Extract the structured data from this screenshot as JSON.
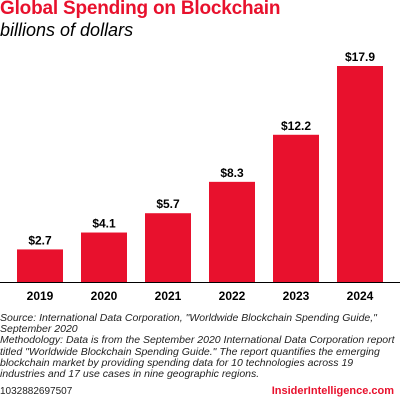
{
  "header": {
    "title": "Global Spending on Blockchain",
    "subtitle": "billions of dollars"
  },
  "chart_data": {
    "type": "bar",
    "title": "Global Spending on Blockchain",
    "subtitle": "billions of dollars",
    "categories": [
      "2019",
      "2020",
      "2021",
      "2022",
      "2023",
      "2024"
    ],
    "values": [
      2.7,
      4.1,
      5.7,
      8.3,
      12.2,
      17.9
    ],
    "value_labels": [
      "$2.7",
      "$4.1",
      "$5.7",
      "$8.3",
      "$12.2",
      "$17.9"
    ],
    "xlabel": "",
    "ylabel": "",
    "ylim": [
      0,
      17.9
    ],
    "grid": false,
    "bar_color": "#e8112d"
  },
  "footer": {
    "source": "Source: International Data Corporation, \"Worldwide Blockchain Spending Guide,\" September 2020",
    "methodology": "Methodology: Data is from the September 2020 International Data Corporation report titled \"Worldwide Blockchain Spending Guide.\" The report quantifies the emerging blockchain market by providing spending data for 10 technologies across 19 industries and 17 use cases in nine geographic regions.",
    "chart_id": "1032882697507",
    "brand": "InsiderIntelligence.com"
  },
  "colors": {
    "accent": "#e8112d",
    "text": "#000000"
  }
}
